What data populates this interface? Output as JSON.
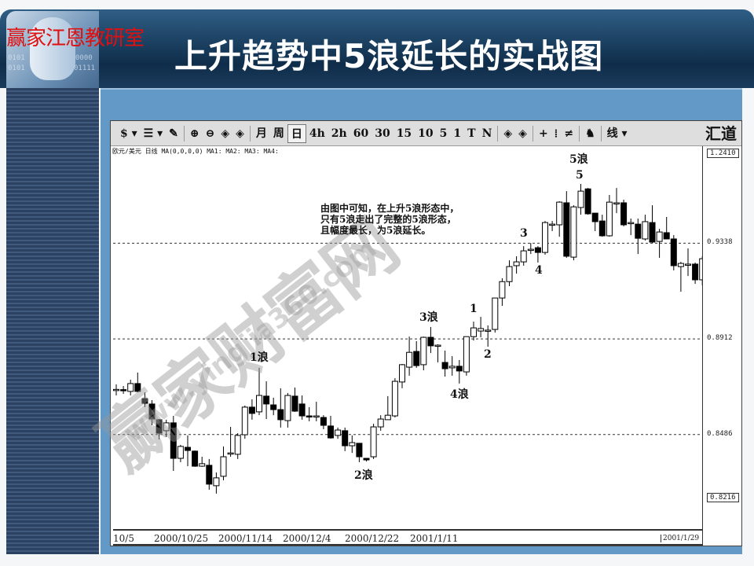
{
  "header": {
    "brand": "赢家江恩教研室",
    "title": "上升趋势中5浪延长的实战图",
    "logo_bits": [
      "0101",
      "0000",
      "0101",
      "01111"
    ]
  },
  "toolbar": {
    "items": [
      "$ ▾",
      "☰ ▾",
      "✎",
      "⊕",
      "⊖",
      "◈",
      "◈",
      "月",
      "周",
      "日",
      "4h",
      "2h",
      "60",
      "30",
      "15",
      "10",
      "5",
      "1",
      "T",
      "N",
      "◈",
      "◈",
      "+",
      "⁞",
      "≠",
      "♞",
      "线 ▾"
    ],
    "selected": "日",
    "brand": "汇道"
  },
  "chart_info": "欧元/美元 日线 MA(0,0,0,0)  MA1: MA2: MA3: MA4:",
  "price_labels": [
    "1.2410",
    "0.9338",
    "0.8912",
    "0.8486",
    "0.8216"
  ],
  "date_labels": [
    "10/5",
    "2000/10/25",
    "2000/11/14",
    "2000/12/4",
    "2000/12/22",
    "2001/1/11",
    "2001/1/29"
  ],
  "annotation": [
    "由图中可知，在上升5浪形态中，",
    "只有5浪走出了完整的5浪形态，",
    "且幅度最长，为5浪延长。"
  ],
  "waves": {
    "w1": "1浪",
    "w2": "2浪",
    "w3": "3浪",
    "w4": "4浪",
    "w5": "5浪",
    "s1": "1",
    "s2": "2",
    "s3": "3",
    "s4": "4",
    "s5": "5"
  },
  "watermark": {
    "main": "赢家财富网",
    "url": "www.yingjia360.com"
  },
  "colors": {
    "up": "#ffffff",
    "down": "#000000",
    "panel": "#6399c6",
    "header": "#0f2d4a",
    "brand": "#e01010"
  },
  "chart_data": {
    "type": "candlestick",
    "title": "",
    "ylim": [
      0.8065,
      0.977
    ],
    "gridlines": [
      0.9338,
      0.8912,
      0.8486
    ],
    "ohlc": [
      [
        0.8685,
        0.8709,
        0.866,
        0.8687
      ],
      [
        0.8686,
        0.8702,
        0.8667,
        0.8685
      ],
      [
        0.8678,
        0.873,
        0.866,
        0.8713
      ],
      [
        0.8713,
        0.8762,
        0.8674,
        0.8678
      ],
      [
        0.8646,
        0.8674,
        0.8608,
        0.8625
      ],
      [
        0.8622,
        0.8639,
        0.8527,
        0.8555
      ],
      [
        0.8552,
        0.8555,
        0.8464,
        0.8492
      ],
      [
        0.8503,
        0.8552,
        0.8475,
        0.8538
      ],
      [
        0.8538,
        0.8569,
        0.8324,
        0.838
      ],
      [
        0.838,
        0.844,
        0.8363,
        0.8433
      ],
      [
        0.8429,
        0.8482,
        0.8345,
        0.8415
      ],
      [
        0.8412,
        0.8415,
        0.8342,
        0.8345
      ],
      [
        0.8345,
        0.8387,
        0.8342,
        0.8356
      ],
      [
        0.8349,
        0.8377,
        0.824,
        0.8265
      ],
      [
        0.8258,
        0.8317,
        0.8223,
        0.8293
      ],
      [
        0.83,
        0.8433,
        0.8282,
        0.8387
      ],
      [
        0.8401,
        0.852,
        0.8387,
        0.8404
      ],
      [
        0.8398,
        0.8492,
        0.8377,
        0.8482
      ],
      [
        0.8485,
        0.8615,
        0.8467,
        0.8608
      ],
      [
        0.8608,
        0.8643,
        0.8552,
        0.858
      ],
      [
        0.8587,
        0.8783,
        0.8572,
        0.866
      ],
      [
        0.8657,
        0.8723,
        0.8555,
        0.8622
      ],
      [
        0.8618,
        0.865,
        0.8572,
        0.8597
      ],
      [
        0.8597,
        0.8692,
        0.8517,
        0.8552
      ],
      [
        0.8548,
        0.8671,
        0.8517,
        0.866
      ],
      [
        0.8657,
        0.8695,
        0.8587,
        0.859
      ],
      [
        0.8622,
        0.866,
        0.8552,
        0.8569
      ],
      [
        0.8569,
        0.8608,
        0.8545,
        0.8566
      ],
      [
        0.8569,
        0.8632,
        0.8545,
        0.8569
      ],
      [
        0.8562,
        0.8572,
        0.851,
        0.8527
      ],
      [
        0.8524,
        0.8569,
        0.8467,
        0.8471
      ],
      [
        0.8482,
        0.8517,
        0.8467,
        0.8506
      ],
      [
        0.8503,
        0.8517,
        0.8412,
        0.8436
      ],
      [
        0.8436,
        0.8482,
        0.8404,
        0.845
      ],
      [
        0.8447,
        0.8447,
        0.8363,
        0.8387
      ],
      [
        0.838,
        0.838,
        0.8366,
        0.8373
      ],
      [
        0.8387,
        0.8534,
        0.8377,
        0.852
      ],
      [
        0.852,
        0.8572,
        0.8503,
        0.8555
      ],
      [
        0.8552,
        0.8657,
        0.8552,
        0.8572
      ],
      [
        0.8569,
        0.8737,
        0.8562,
        0.8723
      ],
      [
        0.872,
        0.88,
        0.8692,
        0.8797
      ],
      [
        0.8786,
        0.8922,
        0.8748,
        0.8852
      ],
      [
        0.8856,
        0.8902,
        0.8783,
        0.8793
      ],
      [
        0.8797,
        0.8922,
        0.8772,
        0.8919
      ],
      [
        0.8919,
        0.8965,
        0.8849,
        0.8881
      ],
      [
        0.8884,
        0.8888,
        0.8807,
        0.8884
      ],
      [
        0.8807,
        0.886,
        0.8744,
        0.8779
      ],
      [
        0.8783,
        0.8835,
        0.8748,
        0.879
      ],
      [
        0.879,
        0.8818,
        0.8713,
        0.8769
      ],
      [
        0.8765,
        0.8922,
        0.8748,
        0.8922
      ],
      [
        0.8922,
        0.8989,
        0.8905,
        0.8961
      ],
      [
        0.8947,
        0.901,
        0.8919,
        0.8958
      ],
      [
        0.8951,
        0.8972,
        0.8877,
        0.8951
      ],
      [
        0.8954,
        0.9094,
        0.894,
        0.9094
      ],
      [
        0.9094,
        0.9182,
        0.9059,
        0.9167
      ],
      [
        0.9167,
        0.9262,
        0.9147,
        0.9234
      ],
      [
        0.9238,
        0.928,
        0.9203,
        0.9255
      ],
      [
        0.9255,
        0.9325,
        0.9238,
        0.9304
      ],
      [
        0.9311,
        0.9339,
        0.929,
        0.9311
      ],
      [
        0.9318,
        0.9325,
        0.9252,
        0.9297
      ],
      [
        0.9297,
        0.9437,
        0.9287,
        0.943
      ],
      [
        0.9423,
        0.9437,
        0.9392,
        0.9423
      ],
      [
        0.942,
        0.9525,
        0.9367,
        0.9521
      ],
      [
        0.9518,
        0.957,
        0.9273,
        0.928
      ],
      [
        0.9276,
        0.9507,
        0.9262,
        0.95
      ],
      [
        0.9497,
        0.9602,
        0.9465,
        0.957
      ],
      [
        0.958,
        0.9584,
        0.9465,
        0.9469
      ],
      [
        0.9472,
        0.9472,
        0.9392,
        0.9434
      ],
      [
        0.9437,
        0.9465,
        0.9367,
        0.9371
      ],
      [
        0.9371,
        0.9553,
        0.9367,
        0.9521
      ],
      [
        0.9518,
        0.9584,
        0.9472,
        0.9518
      ],
      [
        0.9518,
        0.9532,
        0.9413,
        0.942
      ],
      [
        0.943,
        0.9448,
        0.9374,
        0.943
      ],
      [
        0.9423,
        0.9448,
        0.929,
        0.936
      ],
      [
        0.9357,
        0.9465,
        0.935,
        0.9434
      ],
      [
        0.943,
        0.9507,
        0.9339,
        0.9343
      ],
      [
        0.9346,
        0.9402,
        0.9273,
        0.9388
      ],
      [
        0.9385,
        0.9455,
        0.9357,
        0.9357
      ],
      [
        0.9357,
        0.9374,
        0.9217,
        0.9238
      ],
      [
        0.9234,
        0.9255,
        0.9122,
        0.9248
      ],
      [
        0.9245,
        0.9315,
        0.9192,
        0.9245
      ],
      [
        0.9245,
        0.9252,
        0.9157,
        0.9175
      ],
      [
        0.9175,
        0.928,
        0.915,
        0.9269
      ]
    ]
  }
}
